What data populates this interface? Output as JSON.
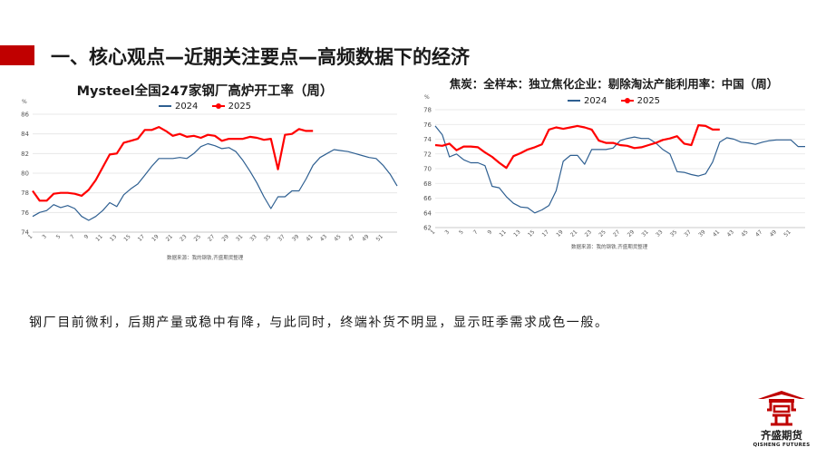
{
  "slide": {
    "title": "一、核心观点—近期关注要点—高频数据下的经济",
    "summary": "钢厂目前微利，后期产量或稳中有降，与此同时，终端补货不明显，显示旺季需求成色一般。"
  },
  "colors": {
    "accent": "#c00000",
    "series_2024": "#2e5f91",
    "series_2025": "#ff0000"
  },
  "logo": {
    "name": "齐盛期货",
    "english": "QISHENG FUTURES",
    "icon": "qisheng-pavilion-logo"
  },
  "chart_data": [
    {
      "type": "line",
      "title": "Mysteel全国247家钢厂高炉开工率（周）",
      "unit_label": "%",
      "source": "数据来源：我的钢铁,齐盛期货整理",
      "xlim": [
        1,
        53
      ],
      "ylim": [
        74,
        86
      ],
      "yticks": [
        74,
        76,
        78,
        80,
        82,
        84,
        86
      ],
      "xtick_labels": [
        "1",
        "3",
        "5",
        "7",
        "9",
        "11",
        "13",
        "15",
        "17",
        "19",
        "21",
        "23",
        "25",
        "27",
        "29",
        "31",
        "33",
        "35",
        "37",
        "39",
        "41",
        "43",
        "45",
        "47",
        "49",
        "51"
      ],
      "series": [
        {
          "name": "2024",
          "x": [
            1,
            2,
            3,
            4,
            5,
            6,
            7,
            8,
            9,
            10,
            11,
            12,
            13,
            14,
            15,
            16,
            17,
            18,
            19,
            20,
            21,
            22,
            23,
            24,
            25,
            26,
            27,
            28,
            29,
            30,
            31,
            32,
            33,
            34,
            35,
            36,
            37,
            38,
            39,
            40,
            41,
            42,
            43,
            44,
            45,
            46,
            47,
            48,
            49,
            50,
            51,
            52,
            53
          ],
          "y": [
            75.6,
            76.0,
            76.2,
            76.8,
            76.5,
            76.7,
            76.4,
            75.6,
            75.2,
            75.6,
            76.2,
            77.0,
            76.6,
            77.8,
            78.4,
            78.9,
            79.8,
            80.7,
            81.5,
            81.5,
            81.5,
            81.6,
            81.5,
            82.0,
            82.7,
            83.0,
            82.8,
            82.5,
            82.6,
            82.2,
            81.3,
            80.2,
            79.0,
            77.6,
            76.4,
            77.6,
            77.6,
            78.2,
            78.2,
            79.4,
            80.8,
            81.6,
            82.0,
            82.4,
            82.3,
            82.2,
            82.0,
            81.8,
            81.6,
            81.5,
            80.8,
            79.9,
            78.7
          ]
        },
        {
          "name": "2025",
          "x": [
            1,
            2,
            3,
            4,
            5,
            6,
            7,
            8,
            9,
            10,
            11,
            12,
            13,
            14,
            15,
            16,
            17,
            18,
            19,
            20,
            21,
            22,
            23,
            24,
            25,
            26,
            27,
            28,
            29,
            30,
            31,
            32,
            33,
            34,
            35,
            36,
            37,
            38,
            39,
            40,
            41
          ],
          "y": [
            78.2,
            77.2,
            77.2,
            77.9,
            78.0,
            78.0,
            77.9,
            77.7,
            78.3,
            79.3,
            80.6,
            81.9,
            82.0,
            83.1,
            83.3,
            83.5,
            84.4,
            84.4,
            84.7,
            84.3,
            83.8,
            84.0,
            83.7,
            83.8,
            83.6,
            83.9,
            83.8,
            83.3,
            83.5,
            83.5,
            83.5,
            83.7,
            83.6,
            83.4,
            83.5,
            80.4,
            83.9,
            84.0,
            84.5,
            84.3,
            84.3
          ]
        }
      ]
    },
    {
      "type": "line",
      "title": "焦炭：全样本：独立焦化企业：剔除淘汰产能利用率：中国（周）",
      "unit_label": "%",
      "source": "数据来源：我的钢铁,齐盛期货整理",
      "xlim": [
        1,
        53
      ],
      "ylim": [
        62,
        78
      ],
      "yticks": [
        62,
        64,
        66,
        68,
        70,
        72,
        74,
        76,
        78
      ],
      "xtick_labels": [
        "1",
        "3",
        "5",
        "7",
        "9",
        "11",
        "13",
        "15",
        "17",
        "19",
        "21",
        "23",
        "25",
        "27",
        "29",
        "31",
        "33",
        "35",
        "37",
        "39",
        "41",
        "43",
        "45",
        "47",
        "49",
        "51"
      ],
      "series": [
        {
          "name": "2024",
          "x": [
            1,
            2,
            3,
            4,
            5,
            6,
            7,
            8,
            9,
            10,
            11,
            12,
            13,
            14,
            15,
            16,
            17,
            18,
            19,
            20,
            21,
            22,
            23,
            24,
            25,
            26,
            27,
            28,
            29,
            30,
            31,
            32,
            33,
            34,
            35,
            36,
            37,
            38,
            39,
            40,
            41,
            42,
            43,
            44,
            45,
            46,
            47,
            48,
            49,
            50,
            51,
            52,
            53
          ],
          "y": [
            75.8,
            74.6,
            71.6,
            72.0,
            71.2,
            70.8,
            70.8,
            70.4,
            67.6,
            67.4,
            66.2,
            65.3,
            64.8,
            64.7,
            64.0,
            64.4,
            65.0,
            67.0,
            71.0,
            71.8,
            71.8,
            70.6,
            72.6,
            72.6,
            72.6,
            72.8,
            73.8,
            74.1,
            74.3,
            74.1,
            74.1,
            73.5,
            72.6,
            72.0,
            69.6,
            69.5,
            69.2,
            69.0,
            69.3,
            70.9,
            73.6,
            74.2,
            74.0,
            73.6,
            73.5,
            73.3,
            73.6,
            73.8,
            73.9,
            73.9,
            73.9,
            73.0,
            73.0
          ]
        },
        {
          "name": "2025",
          "x": [
            1,
            2,
            3,
            4,
            5,
            6,
            7,
            8,
            9,
            10,
            11,
            12,
            13,
            14,
            15,
            16,
            17,
            18,
            19,
            20,
            21,
            22,
            23,
            24,
            25,
            26,
            27,
            28,
            29,
            30,
            31,
            32,
            33,
            34,
            35,
            36,
            37,
            38,
            39,
            40,
            41
          ],
          "y": [
            73.2,
            73.1,
            73.4,
            72.5,
            73.0,
            73.0,
            72.9,
            72.2,
            71.6,
            70.8,
            70.1,
            71.7,
            72.1,
            72.6,
            72.9,
            73.3,
            75.3,
            75.6,
            75.4,
            75.6,
            75.8,
            75.6,
            75.3,
            73.8,
            73.5,
            73.5,
            73.2,
            73.1,
            72.8,
            72.9,
            73.2,
            73.5,
            73.9,
            74.1,
            74.4,
            73.4,
            73.2,
            75.9,
            75.8,
            75.3,
            75.3
          ]
        }
      ]
    }
  ]
}
